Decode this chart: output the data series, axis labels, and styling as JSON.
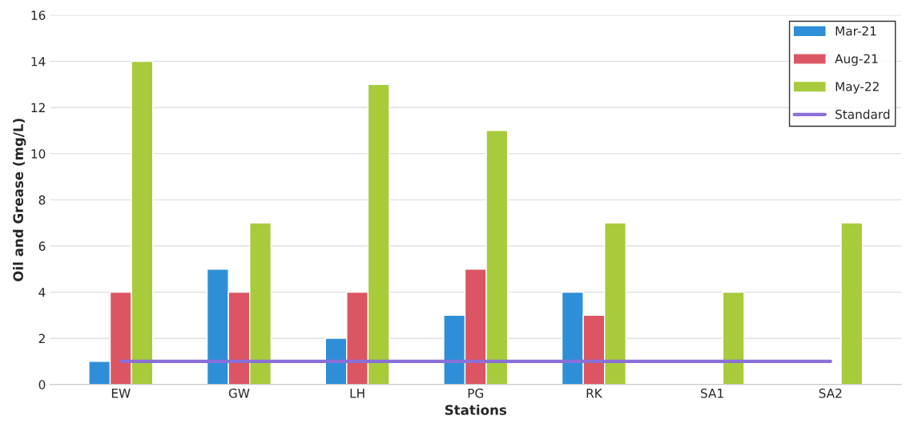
{
  "chart_data": {
    "type": "bar",
    "xlabel": "Stations",
    "ylabel": "Oil and Grease (mg/L)",
    "categories": [
      "EW",
      "GW",
      "LH",
      "PG",
      "RK",
      "SA1",
      "SA2"
    ],
    "series": [
      {
        "name": "Mar-21",
        "color": "#2e8fd8",
        "values": [
          1,
          5,
          2,
          3,
          4,
          null,
          null
        ]
      },
      {
        "name": "Aug-21",
        "color": "#dc5563",
        "values": [
          4,
          4,
          4,
          5,
          3,
          null,
          null
        ]
      },
      {
        "name": "May-22",
        "color": "#a8cb3c",
        "values": [
          14,
          7,
          13,
          11,
          7,
          4,
          7
        ]
      },
      {
        "name": "Standard",
        "type": "line",
        "color": "#8a6fd8",
        "values": [
          1,
          1,
          1,
          1,
          1,
          1,
          1
        ]
      }
    ],
    "ylim": [
      0,
      16
    ],
    "yticks": [
      0,
      2,
      4,
      6,
      8,
      10,
      12,
      14,
      16
    ],
    "grid": "y",
    "legend": "top right"
  }
}
